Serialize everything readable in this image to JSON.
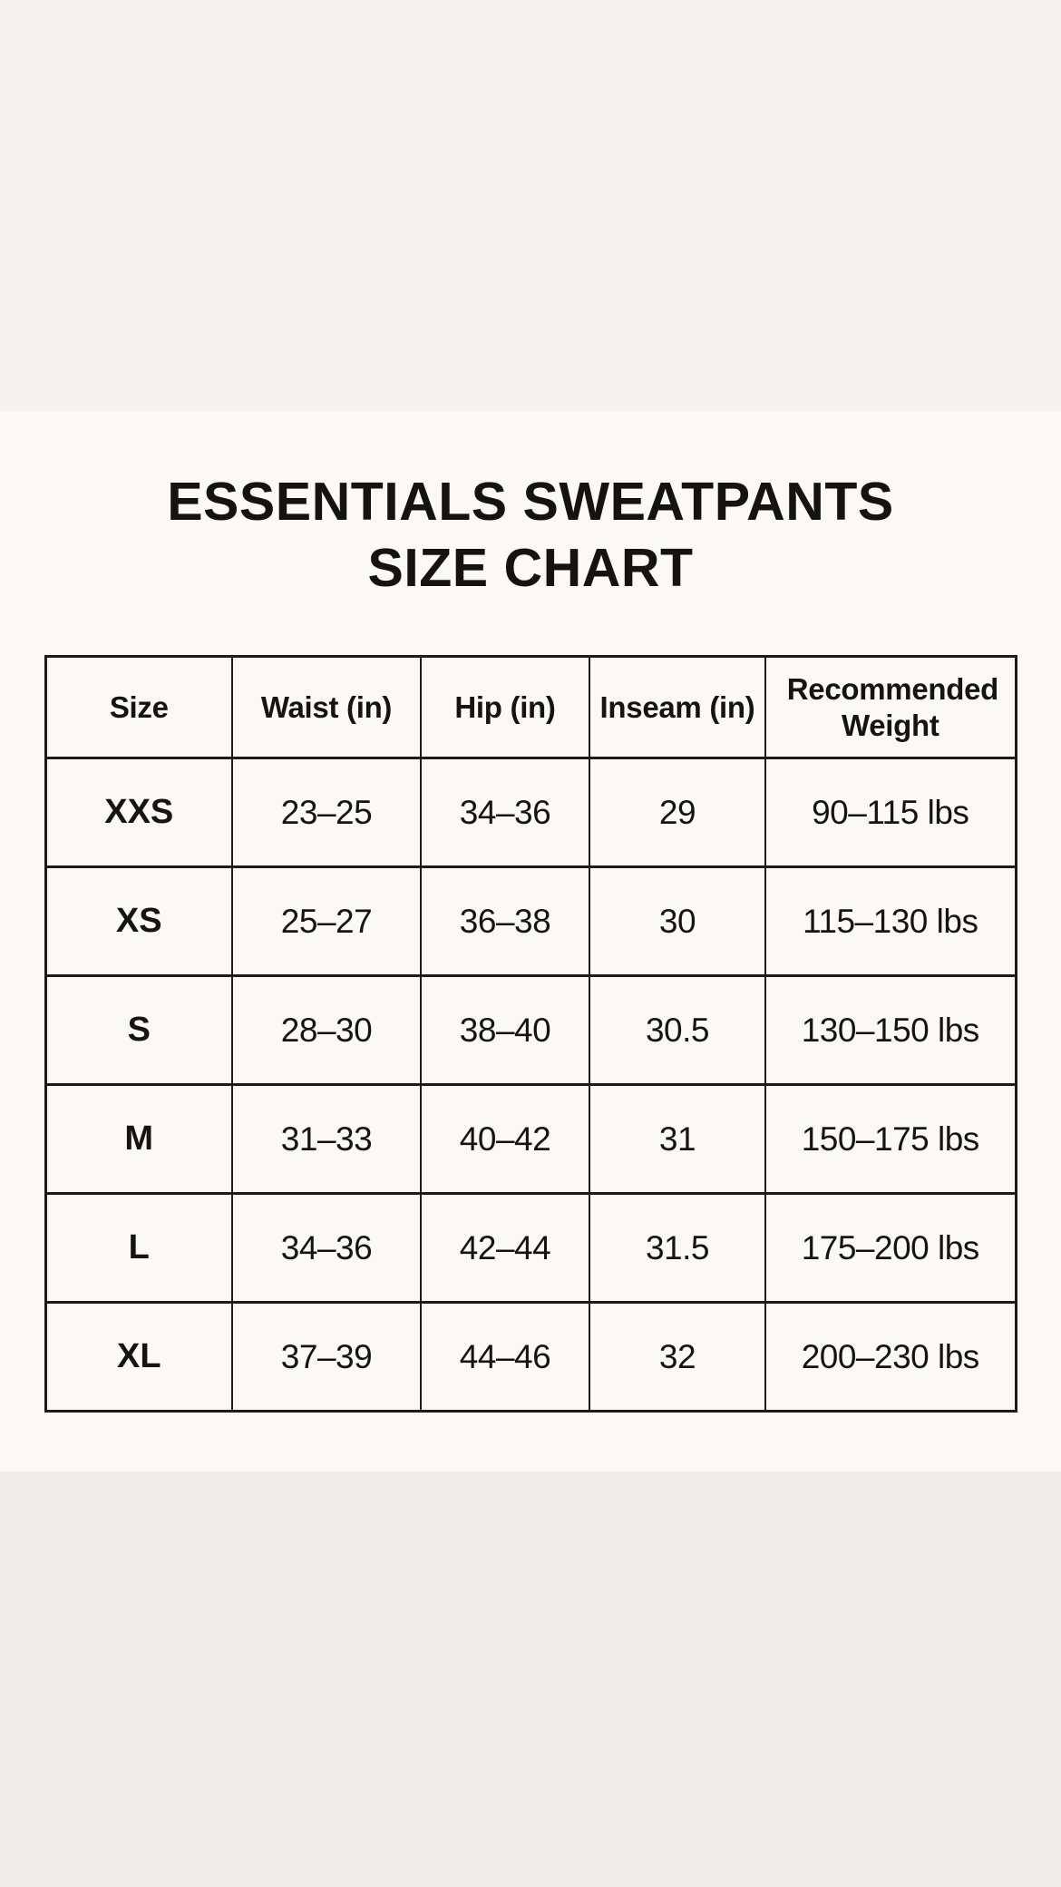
{
  "title": {
    "line1": "ESSENTIALS SWEATPANTS",
    "line2": "SIZE CHART"
  },
  "colors": {
    "top_band": "#f4f3f1",
    "panel": "#faf9f6",
    "bottom_band": "#edecea",
    "text": "#161412",
    "table_border": "#1d1b19"
  },
  "chart_data": {
    "type": "table",
    "title": "ESSENTIALS SWEATPANTS SIZE CHART",
    "columns": [
      "Size",
      "Waist (in)",
      "Hip (in)",
      "Inseam (in)",
      "Recommended Weight"
    ],
    "rows": [
      [
        "XXS",
        "23–25",
        "34–36",
        "29",
        "90–115 lbs"
      ],
      [
        "XS",
        "25–27",
        "36–38",
        "30",
        "115–130 lbs"
      ],
      [
        "S",
        "28–30",
        "38–40",
        "30.5",
        "130–150 lbs"
      ],
      [
        "M",
        "31–33",
        "40–42",
        "31",
        "150–175 lbs"
      ],
      [
        "L",
        "34–36",
        "42–44",
        "31.5",
        "175–200 lbs"
      ],
      [
        "XL",
        "37–39",
        "44–46",
        "32",
        "200–230 lbs"
      ]
    ]
  }
}
